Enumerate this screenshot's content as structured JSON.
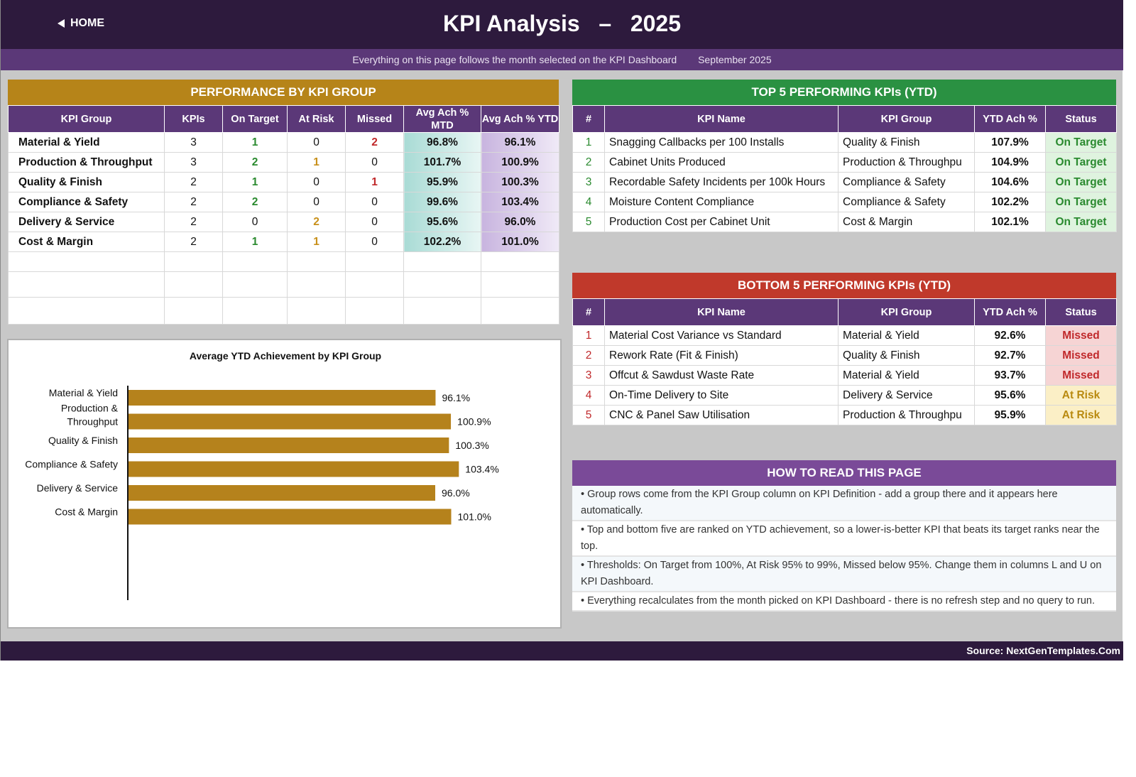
{
  "header": {
    "home_label": "HOME",
    "title": "KPI Analysis   –   2025"
  },
  "subheader": {
    "note": "Everything on this page follows the month selected on the KPI Dashboard",
    "month": "September 2025"
  },
  "colors": {
    "header_bg": "#2d1a3d",
    "subheader_bg": "#5b3878",
    "performance_head": "#b68419",
    "top5_head": "#2a9142",
    "bottom5_head": "#c0392b",
    "howto_head": "#7a4a98",
    "bar": "#b5821c"
  },
  "performance": {
    "title": "PERFORMANCE BY KPI GROUP",
    "columns": [
      "KPI Group",
      "KPIs",
      "On Target",
      "At Risk",
      "Missed",
      "Avg Ach % MTD",
      "Avg Ach % YTD"
    ],
    "rows": [
      {
        "group": "Material & Yield",
        "kpis": "3",
        "on_target": "1",
        "at_risk": "0",
        "missed": "2",
        "mtd": "96.8%",
        "ytd": "96.1%"
      },
      {
        "group": "Production & Throughput",
        "kpis": "3",
        "on_target": "2",
        "at_risk": "1",
        "missed": "0",
        "mtd": "101.7%",
        "ytd": "100.9%"
      },
      {
        "group": "Quality & Finish",
        "kpis": "2",
        "on_target": "1",
        "at_risk": "0",
        "missed": "1",
        "mtd": "95.9%",
        "ytd": "100.3%"
      },
      {
        "group": "Compliance & Safety",
        "kpis": "2",
        "on_target": "2",
        "at_risk": "0",
        "missed": "0",
        "mtd": "99.6%",
        "ytd": "103.4%"
      },
      {
        "group": "Delivery & Service",
        "kpis": "2",
        "on_target": "0",
        "at_risk": "2",
        "missed": "0",
        "mtd": "95.6%",
        "ytd": "96.0%"
      },
      {
        "group": "Cost & Margin",
        "kpis": "2",
        "on_target": "1",
        "at_risk": "1",
        "missed": "0",
        "mtd": "102.2%",
        "ytd": "101.0%"
      }
    ]
  },
  "top5": {
    "title": "TOP 5 PERFORMING KPIs  (YTD)",
    "columns": [
      "#",
      "KPI Name",
      "KPI Group",
      "YTD Ach %",
      "Status"
    ],
    "rows": [
      {
        "rank": "1",
        "name": "Snagging Callbacks per 100 Installs",
        "group": "Quality & Finish",
        "ytd": "107.9%",
        "status": "On Target"
      },
      {
        "rank": "2",
        "name": "Cabinet Units Produced",
        "group": "Production & Throughpu",
        "ytd": "104.9%",
        "status": "On Target"
      },
      {
        "rank": "3",
        "name": "Recordable Safety Incidents per 100k Hours",
        "group": "Compliance & Safety",
        "ytd": "104.6%",
        "status": "On Target"
      },
      {
        "rank": "4",
        "name": "Moisture Content Compliance",
        "group": "Compliance & Safety",
        "ytd": "102.2%",
        "status": "On Target"
      },
      {
        "rank": "5",
        "name": "Production Cost per Cabinet Unit",
        "group": "Cost & Margin",
        "ytd": "102.1%",
        "status": "On Target"
      }
    ]
  },
  "bottom5": {
    "title": "BOTTOM 5 PERFORMING KPIs  (YTD)",
    "columns": [
      "#",
      "KPI Name",
      "KPI Group",
      "YTD Ach %",
      "Status"
    ],
    "rows": [
      {
        "rank": "1",
        "name": "Material Cost Variance vs Standard",
        "group": "Material & Yield",
        "ytd": "92.6%",
        "status": "Missed"
      },
      {
        "rank": "2",
        "name": "Rework Rate (Fit & Finish)",
        "group": "Quality & Finish",
        "ytd": "92.7%",
        "status": "Missed"
      },
      {
        "rank": "3",
        "name": "Offcut & Sawdust Waste Rate",
        "group": "Material & Yield",
        "ytd": "93.7%",
        "status": "Missed"
      },
      {
        "rank": "4",
        "name": "On-Time Delivery to Site",
        "group": "Delivery & Service",
        "ytd": "95.6%",
        "status": "At Risk"
      },
      {
        "rank": "5",
        "name": "CNC & Panel Saw Utilisation",
        "group": "Production & Throughpu",
        "ytd": "95.9%",
        "status": "At Risk"
      }
    ]
  },
  "howto": {
    "title": "HOW TO READ THIS PAGE",
    "items": [
      "•  Group rows come from the KPI Group column on KPI Definition - add a group there and it appears here automatically.",
      "•  Top and bottom five are ranked on YTD achievement, so a lower-is-better KPI that beats its target ranks near the top.",
      "•  Thresholds: On Target from 100%, At Risk 95% to 99%, Missed below 95%. Change them in columns L and U on KPI Dashboard.",
      "•  Everything recalculates from the month picked on KPI Dashboard - there is no refresh step and no query to run."
    ]
  },
  "chart_data": {
    "type": "bar",
    "orientation": "horizontal",
    "title": "Average YTD Achievement by KPI Group",
    "categories": [
      "Material & Yield",
      "Production & Throughput",
      "Quality & Finish",
      "Compliance & Safety",
      "Delivery & Service",
      "Cost & Margin"
    ],
    "values": [
      96.1,
      100.9,
      100.3,
      103.4,
      96.0,
      101.0
    ],
    "labels": [
      "96.1%",
      "100.9%",
      "100.3%",
      "103.4%",
      "96.0%",
      "101.0%"
    ],
    "xlim": [
      0,
      120
    ],
    "grid": false,
    "legend": false
  },
  "footer": {
    "source": "Source: NextGenTemplates.Com"
  }
}
